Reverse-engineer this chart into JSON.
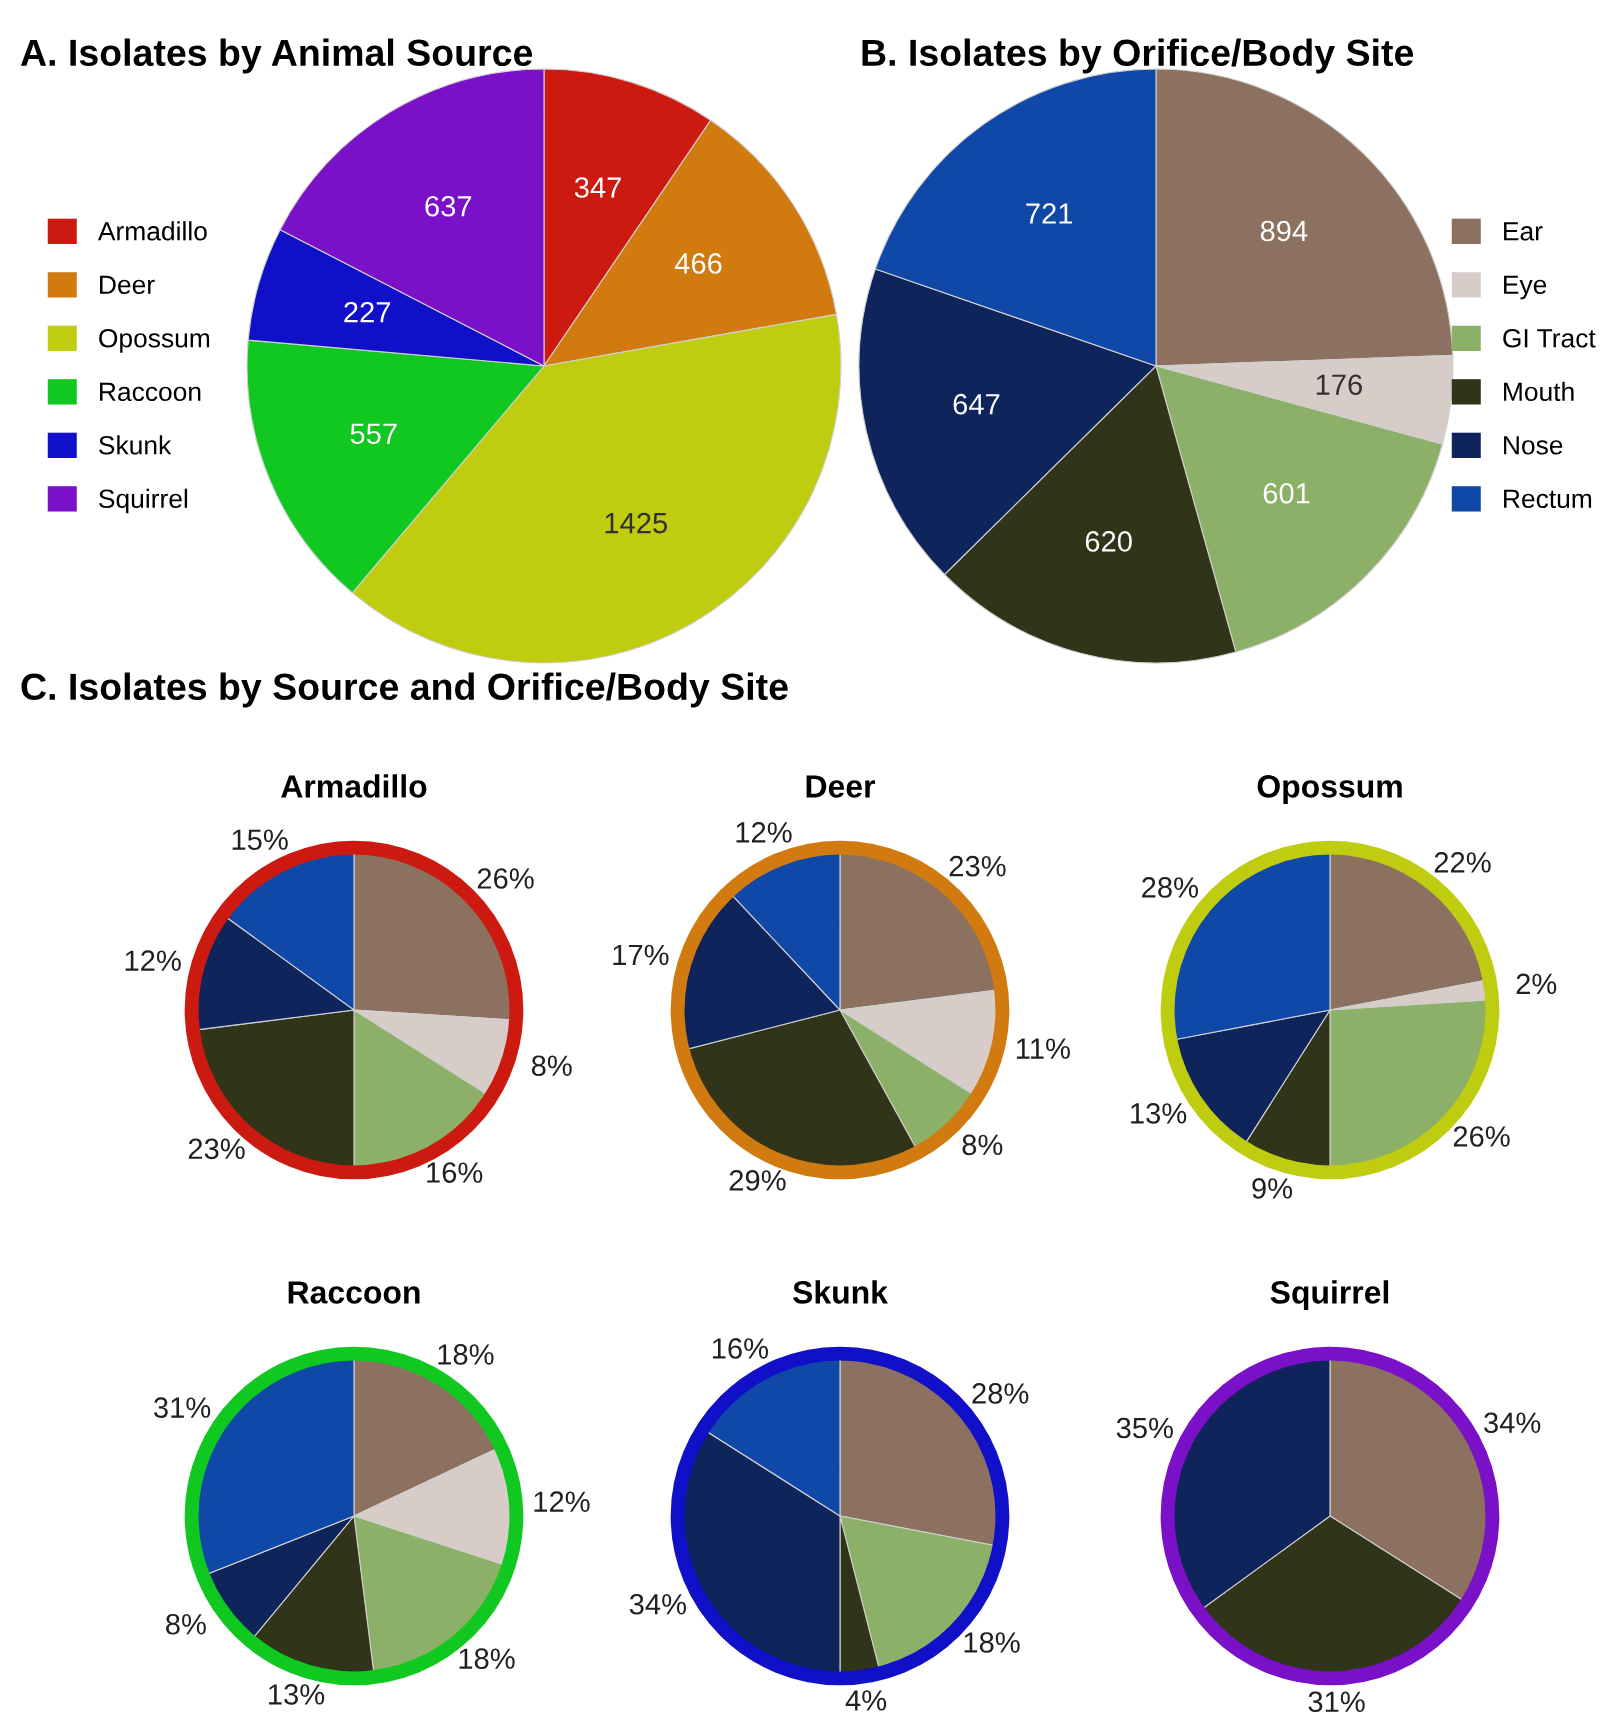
{
  "chart_data": [
    {
      "type": "pie",
      "title": "A. Isolates by Animal Source",
      "categories": [
        "Armadillo",
        "Deer",
        "Opossum",
        "Raccoon",
        "Skunk",
        "Squirrel"
      ],
      "values": [
        347,
        466,
        1425,
        557,
        227,
        637
      ],
      "colors": [
        "#cc1a10",
        "#d07a10",
        "#c0cc10",
        "#10c820",
        "#1010c8",
        "#7a10c8"
      ],
      "data_labels": true,
      "legend": "left"
    },
    {
      "type": "pie",
      "title": "B. Isolates by Orifice/Body Site",
      "categories": [
        "Ear",
        "Eye",
        "GI Tract",
        "Mouth",
        "Nose",
        "Rectum"
      ],
      "values": [
        894,
        176,
        601,
        620,
        647,
        721
      ],
      "colors": [
        "#8c7060",
        "#d8ccc8",
        "#8cb068",
        "#303418",
        "#10245c",
        "#1048a8"
      ],
      "data_labels": true,
      "legend": "right"
    },
    {
      "type": "other",
      "title": "C. Isolates by Source and Orifice/Body Site"
    },
    {
      "type": "pie",
      "title": "Armadillo",
      "categories": [
        null,
        null,
        null,
        null,
        null,
        null
      ],
      "values": [
        26,
        8,
        16,
        23,
        12,
        15
      ],
      "colors": [
        "#8c7060",
        "#d8ccc8",
        "#8cb068",
        "#303418",
        "#10245c",
        "#1048a8"
      ],
      "value_labels": [
        "26%",
        "8%",
        "16%",
        "23%",
        "12%",
        "15%"
      ]
    },
    {
      "type": "pie",
      "title": "Deer",
      "categories": [
        null,
        null,
        null,
        null,
        null,
        null
      ],
      "values": [
        23,
        11,
        8,
        29,
        17,
        12
      ],
      "colors": [
        "#8c7060",
        "#d8ccc8",
        "#8cb068",
        "#303418",
        "#10245c",
        "#1048a8"
      ],
      "value_labels": [
        "23%",
        "11%",
        "8%",
        "29%",
        "17%",
        "12%"
      ]
    },
    {
      "type": "pie",
      "title": "Opossum",
      "categories": [
        null,
        null,
        null,
        null,
        null,
        null
      ],
      "values": [
        22,
        2,
        26,
        9,
        13,
        28
      ],
      "colors": [
        "#8c7060",
        "#d8ccc8",
        "#8cb068",
        "#303418",
        "#10245c",
        "#1048a8"
      ],
      "value_labels": [
        "22%",
        "2%",
        "26%",
        "9%",
        "13%",
        "28%"
      ]
    },
    {
      "type": "pie",
      "title": "Raccoon",
      "categories": [
        null,
        null,
        null,
        null,
        null,
        null
      ],
      "values": [
        18,
        12,
        18,
        13,
        8,
        31
      ],
      "colors": [
        "#8c7060",
        "#d8ccc8",
        "#8cb068",
        "#303418",
        "#10245c",
        "#1048a8"
      ],
      "value_labels": [
        "18%",
        "12%",
        "18%",
        "13%",
        "8%",
        "31%"
      ]
    },
    {
      "type": "pie",
      "title": "Skunk",
      "categories": [
        null,
        null,
        null,
        null,
        null
      ],
      "values": [
        28,
        18,
        4,
        34,
        16
      ],
      "colors": [
        "#8c7060",
        "#8cb068",
        "#303418",
        "#10245c",
        "#1048a8"
      ],
      "value_labels": [
        "28%",
        "18%",
        "4%",
        "34%",
        "16%"
      ]
    },
    {
      "type": "pie",
      "title": "Squirrel",
      "categories": [
        null,
        null,
        null
      ],
      "values": [
        34,
        31,
        35
      ],
      "colors": [
        "#8c7060",
        "#303418",
        "#10245c"
      ],
      "value_labels": [
        "34%",
        "31%",
        "35%"
      ]
    }
  ]
}
